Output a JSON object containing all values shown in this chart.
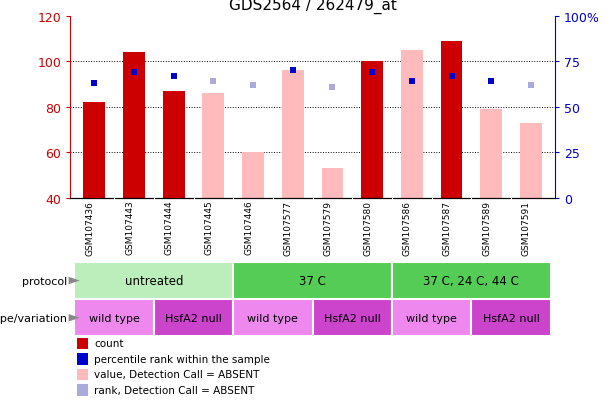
{
  "title": "GDS2564 / 262479_at",
  "samples": [
    "GSM107436",
    "GSM107443",
    "GSM107444",
    "GSM107445",
    "GSM107446",
    "GSM107577",
    "GSM107579",
    "GSM107580",
    "GSM107586",
    "GSM107587",
    "GSM107589",
    "GSM107591"
  ],
  "bar_values": [
    82,
    104,
    87,
    86,
    60,
    96,
    53,
    100,
    105,
    109,
    79,
    73
  ],
  "bar_absent": [
    false,
    false,
    false,
    true,
    true,
    true,
    true,
    false,
    true,
    false,
    true,
    true
  ],
  "pct_values": [
    63,
    69,
    67,
    64,
    62,
    70,
    61,
    69,
    64,
    67,
    64,
    62
  ],
  "pct_absent": [
    false,
    false,
    false,
    true,
    true,
    false,
    true,
    false,
    false,
    false,
    false,
    true
  ],
  "ylim_left": [
    40,
    120
  ],
  "ylim_right": [
    0,
    100
  ],
  "yticks_left": [
    40,
    60,
    80,
    100,
    120
  ],
  "yticks_right": [
    0,
    25,
    50,
    75,
    100
  ],
  "ytick_labels_right": [
    "0",
    "25",
    "50",
    "75",
    "100%"
  ],
  "bar_color_present": "#cc0000",
  "bar_color_absent": "#ffbbbb",
  "pct_color_present": "#0000cc",
  "pct_color_absent": "#aaaadd",
  "bar_width": 0.55,
  "left_tick_color": "#cc0000",
  "right_tick_color": "#0000cc",
  "grid_yticks": [
    60,
    80,
    100
  ],
  "protocol_spans": [
    [
      0,
      3,
      "untreated",
      "#bbeebb"
    ],
    [
      4,
      7,
      "37 C",
      "#55cc55"
    ],
    [
      8,
      11,
      "37 C, 24 C, 44 C",
      "#55cc55"
    ]
  ],
  "genotype_spans": [
    [
      0,
      1,
      "wild type",
      "#ee88ee"
    ],
    [
      2,
      3,
      "HsfA2 null",
      "#cc44cc"
    ],
    [
      4,
      5,
      "wild type",
      "#ee88ee"
    ],
    [
      6,
      7,
      "HsfA2 null",
      "#cc44cc"
    ],
    [
      8,
      9,
      "wild type",
      "#ee88ee"
    ],
    [
      10,
      11,
      "HsfA2 null",
      "#cc44cc"
    ]
  ],
  "sample_bg": "#cccccc",
  "legend_items": [
    [
      "count",
      "#cc0000"
    ],
    [
      "percentile rank within the sample",
      "#0000cc"
    ],
    [
      "value, Detection Call = ABSENT",
      "#ffbbbb"
    ],
    [
      "rank, Detection Call = ABSENT",
      "#aaaadd"
    ]
  ]
}
